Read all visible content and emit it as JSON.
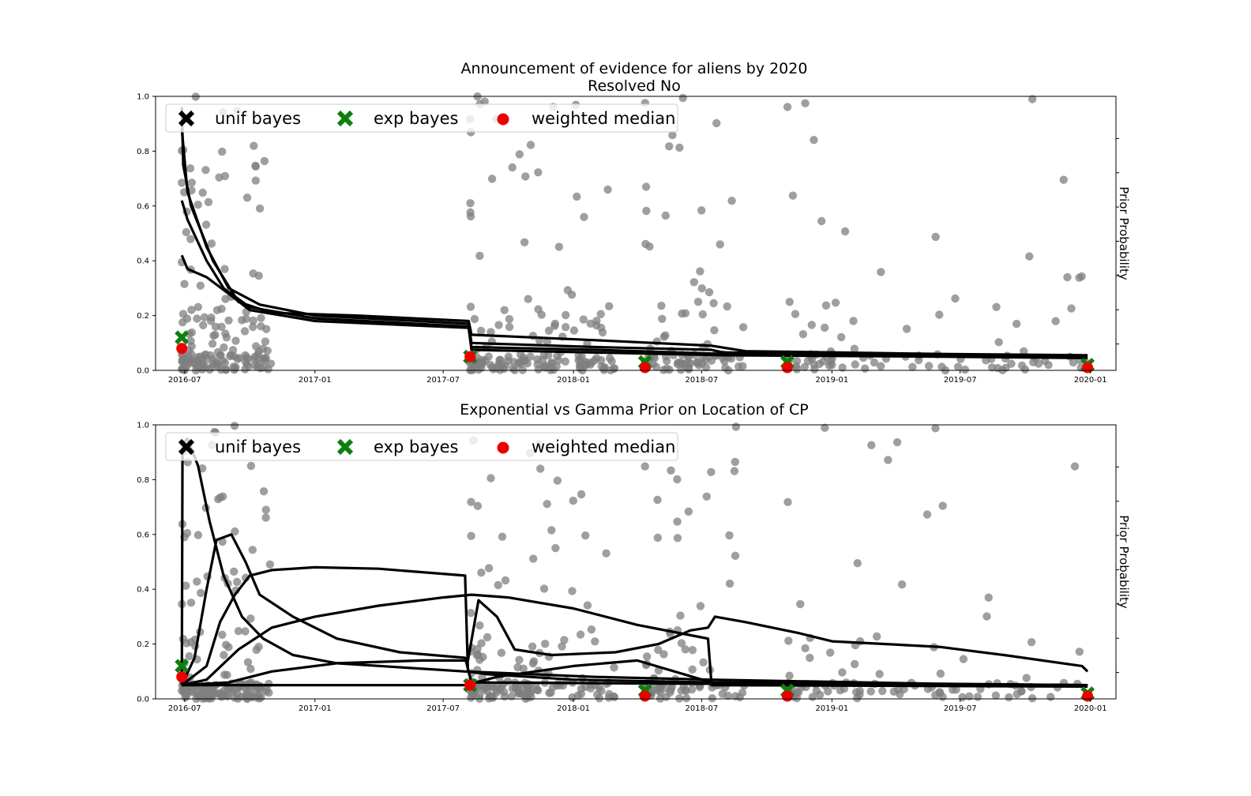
{
  "figure": {
    "title_line1": "Announcement of evidence for aliens by 2020",
    "title_line2": "Resolved No"
  },
  "legend": {
    "unif": "unif bayes",
    "exp": "exp bayes",
    "median": "weighted median"
  },
  "colors": {
    "points": "#7f7f7f",
    "curves": "#000000",
    "exp_marker": "#0e7f0e",
    "median_marker": "#ee0000"
  },
  "chart_data": [
    {
      "type": "scatter",
      "title": "Announcement of evidence for aliens by 2020 / Resolved No",
      "ylabel_right": "Prior Probability",
      "ylim": [
        0,
        1
      ],
      "xlim": [
        "2016-05-21",
        "2020-02-06"
      ],
      "xticks": [
        "2016-07",
        "2017-01",
        "2017-07",
        "2018-01",
        "2018-07",
        "2019-01",
        "2019-07",
        "2020-01"
      ],
      "yticks": [
        "0.0",
        "0.2",
        "0.4",
        "0.6",
        "0.8",
        "1.0"
      ],
      "series": [
        {
          "name": "unif bayes",
          "marker": "x",
          "points": [
            [
              "2016-06-27",
              0.12
            ],
            [
              "2017-08-08",
              0.05
            ],
            [
              "2018-04-12",
              0.03
            ],
            [
              "2018-10-30",
              0.03
            ],
            [
              "2019-12-28",
              0.02
            ]
          ]
        },
        {
          "name": "exp bayes",
          "marker": "x",
          "points": [
            [
              "2016-06-27",
              0.12
            ],
            [
              "2017-08-08",
              0.05
            ],
            [
              "2018-04-12",
              0.03
            ],
            [
              "2018-10-30",
              0.03
            ],
            [
              "2019-12-28",
              0.02
            ]
          ]
        },
        {
          "name": "weighted median",
          "marker": "o",
          "points": [
            [
              "2016-06-27",
              0.08
            ],
            [
              "2017-08-08",
              0.05
            ],
            [
              "2018-04-12",
              0.01
            ],
            [
              "2018-10-30",
              0.01
            ],
            [
              "2019-12-28",
              0.01
            ]
          ]
        }
      ],
      "curves": [
        [
          [
            "2016-06-27",
            0.96
          ],
          [
            "2016-06-29",
            0.75
          ],
          [
            "2016-07-10",
            0.6
          ],
          [
            "2016-08-10",
            0.4
          ],
          [
            "2016-09-15",
            0.25
          ],
          [
            "2016-11-01",
            0.21
          ],
          [
            "2017-03-01",
            0.2
          ],
          [
            "2017-08-06",
            0.18
          ],
          [
            "2017-08-10",
            0.13
          ],
          [
            "2018-02-01",
            0.11
          ],
          [
            "2018-07-15",
            0.09
          ],
          [
            "2018-09-01",
            0.07
          ],
          [
            "2019-06-01",
            0.06
          ],
          [
            "2019-12-28",
            0.055
          ]
        ],
        [
          [
            "2016-06-27",
            0.88
          ],
          [
            "2016-07-05",
            0.65
          ],
          [
            "2016-08-01",
            0.45
          ],
          [
            "2016-09-01",
            0.3
          ],
          [
            "2016-10-15",
            0.24
          ],
          [
            "2017-01-01",
            0.2
          ],
          [
            "2017-08-06",
            0.17
          ],
          [
            "2017-08-10",
            0.1
          ],
          [
            "2018-02-01",
            0.085
          ],
          [
            "2018-07-15",
            0.075
          ],
          [
            "2018-08-01",
            0.065
          ],
          [
            "2019-06-01",
            0.058
          ],
          [
            "2019-12-28",
            0.052
          ]
        ],
        [
          [
            "2016-06-27",
            0.62
          ],
          [
            "2016-07-05",
            0.55
          ],
          [
            "2016-08-01",
            0.4
          ],
          [
            "2016-08-25",
            0.3
          ],
          [
            "2016-10-01",
            0.23
          ],
          [
            "2017-01-01",
            0.19
          ],
          [
            "2017-08-06",
            0.16
          ],
          [
            "2017-08-10",
            0.085
          ],
          [
            "2018-02-01",
            0.075
          ],
          [
            "2018-08-01",
            0.06
          ],
          [
            "2019-06-01",
            0.055
          ],
          [
            "2019-12-28",
            0.05
          ]
        ],
        [
          [
            "2016-06-27",
            0.42
          ],
          [
            "2016-07-05",
            0.37
          ],
          [
            "2016-08-01",
            0.34
          ],
          [
            "2016-09-01",
            0.28
          ],
          [
            "2016-10-01",
            0.22
          ],
          [
            "2017-01-01",
            0.18
          ],
          [
            "2017-08-06",
            0.155
          ],
          [
            "2017-08-10",
            0.075
          ],
          [
            "2018-02-01",
            0.065
          ],
          [
            "2018-08-01",
            0.055
          ],
          [
            "2019-06-01",
            0.05
          ],
          [
            "2019-12-28",
            0.045
          ]
        ]
      ]
    },
    {
      "type": "scatter",
      "title": "Exponential vs Gamma Prior on Location of CP",
      "ylabel_right": "Prior Probability",
      "ylim": [
        0,
        1
      ],
      "xlim": [
        "2016-05-21",
        "2020-02-06"
      ],
      "xticks": [
        "2016-07",
        "2017-01",
        "2017-07",
        "2018-01",
        "2018-07",
        "2019-01",
        "2019-07",
        "2020-01"
      ],
      "yticks": [
        "0.0",
        "0.2",
        "0.4",
        "0.6",
        "0.8",
        "1.0"
      ],
      "series": [
        {
          "name": "unif bayes",
          "marker": "x",
          "points": [
            [
              "2016-06-27",
              0.12
            ],
            [
              "2017-08-08",
              0.05
            ],
            [
              "2018-04-12",
              0.03
            ],
            [
              "2018-10-30",
              0.03
            ],
            [
              "2019-12-28",
              0.02
            ]
          ]
        },
        {
          "name": "exp bayes",
          "marker": "x",
          "points": [
            [
              "2016-06-27",
              0.12
            ],
            [
              "2017-08-08",
              0.05
            ],
            [
              "2018-04-12",
              0.03
            ],
            [
              "2018-10-30",
              0.03
            ],
            [
              "2019-12-28",
              0.02
            ]
          ]
        },
        {
          "name": "weighted median",
          "marker": "o",
          "points": [
            [
              "2016-06-27",
              0.08
            ],
            [
              "2017-08-08",
              0.05
            ],
            [
              "2018-04-12",
              0.01
            ],
            [
              "2018-10-30",
              0.01
            ],
            [
              "2019-12-28",
              0.01
            ]
          ]
        }
      ],
      "curves": [
        [
          [
            "2016-06-27",
            0.05
          ],
          [
            "2016-06-28",
            0.93
          ],
          [
            "2016-07-05",
            0.95
          ],
          [
            "2016-07-20",
            0.85
          ],
          [
            "2016-08-05",
            0.65
          ],
          [
            "2016-08-25",
            0.45
          ],
          [
            "2016-09-20",
            0.3
          ],
          [
            "2016-10-20",
            0.22
          ],
          [
            "2016-12-01",
            0.16
          ],
          [
            "2017-02-01",
            0.13
          ],
          [
            "2017-08-01",
            0.1
          ],
          [
            "2018-02-01",
            0.08
          ],
          [
            "2018-07-15",
            0.07
          ],
          [
            "2019-06-01",
            0.055
          ],
          [
            "2019-12-28",
            0.05
          ]
        ],
        [
          [
            "2016-06-27",
            0.05
          ],
          [
            "2016-07-15",
            0.15
          ],
          [
            "2016-08-01",
            0.4
          ],
          [
            "2016-08-15",
            0.58
          ],
          [
            "2016-09-05",
            0.6
          ],
          [
            "2016-09-25",
            0.5
          ],
          [
            "2016-10-15",
            0.38
          ],
          [
            "2016-12-01",
            0.3
          ],
          [
            "2017-02-01",
            0.22
          ],
          [
            "2017-05-01",
            0.17
          ],
          [
            "2017-08-01",
            0.15
          ],
          [
            "2017-08-10",
            0.06
          ],
          [
            "2018-07-15",
            0.055
          ],
          [
            "2019-12-28",
            0.05
          ]
        ],
        [
          [
            "2016-06-27",
            0.05
          ],
          [
            "2016-08-01",
            0.12
          ],
          [
            "2016-08-20",
            0.28
          ],
          [
            "2016-09-10",
            0.38
          ],
          [
            "2016-10-01",
            0.45
          ],
          [
            "2016-11-01",
            0.47
          ],
          [
            "2017-01-01",
            0.48
          ],
          [
            "2017-04-01",
            0.475
          ],
          [
            "2017-08-01",
            0.45
          ],
          [
            "2017-08-05",
            0.1
          ],
          [
            "2017-09-01",
            0.09
          ],
          [
            "2018-01-01",
            0.07
          ],
          [
            "2018-07-15",
            0.06
          ],
          [
            "2019-12-28",
            0.05
          ]
        ],
        [
          [
            "2016-06-27",
            0.05
          ],
          [
            "2016-08-01",
            0.07
          ],
          [
            "2016-09-15",
            0.18
          ],
          [
            "2016-11-01",
            0.26
          ],
          [
            "2017-01-01",
            0.3
          ],
          [
            "2017-04-01",
            0.34
          ],
          [
            "2017-07-01",
            0.37
          ],
          [
            "2017-08-10",
            0.38
          ],
          [
            "2017-10-01",
            0.37
          ],
          [
            "2018-01-01",
            0.33
          ],
          [
            "2018-04-01",
            0.27
          ],
          [
            "2018-07-10",
            0.22
          ],
          [
            "2018-07-15",
            0.05
          ],
          [
            "2019-12-28",
            0.045
          ]
        ],
        [
          [
            "2016-06-27",
            0.05
          ],
          [
            "2016-09-01",
            0.06
          ],
          [
            "2016-11-01",
            0.1
          ],
          [
            "2017-02-01",
            0.13
          ],
          [
            "2017-06-01",
            0.14
          ],
          [
            "2017-08-05",
            0.14
          ],
          [
            "2017-08-20",
            0.36
          ],
          [
            "2017-09-15",
            0.3
          ],
          [
            "2017-10-10",
            0.18
          ],
          [
            "2017-12-01",
            0.16
          ],
          [
            "2018-03-01",
            0.17
          ],
          [
            "2018-05-01",
            0.2
          ],
          [
            "2018-06-15",
            0.25
          ],
          [
            "2018-07-10",
            0.26
          ],
          [
            "2018-07-20",
            0.3
          ],
          [
            "2018-09-01",
            0.28
          ],
          [
            "2018-11-15",
            0.24
          ],
          [
            "2019-01-01",
            0.21
          ],
          [
            "2019-06-01",
            0.19
          ],
          [
            "2019-09-01",
            0.16
          ],
          [
            "2019-12-20",
            0.12
          ],
          [
            "2019-12-28",
            0.1
          ]
        ],
        [
          [
            "2016-06-27",
            0.05
          ],
          [
            "2017-01-01",
            0.05
          ],
          [
            "2017-08-01",
            0.05
          ],
          [
            "2017-09-15",
            0.08
          ],
          [
            "2018-01-01",
            0.12
          ],
          [
            "2018-04-01",
            0.14
          ],
          [
            "2018-07-15",
            0.06
          ],
          [
            "2019-12-28",
            0.05
          ]
        ]
      ],
      "curves_note": "one curve per change-point prior"
    }
  ]
}
